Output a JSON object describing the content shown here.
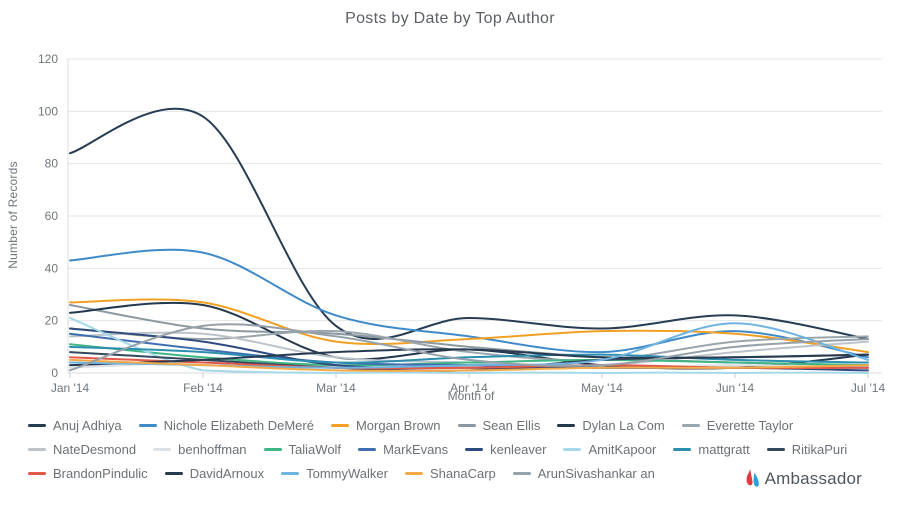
{
  "chart": {
    "title": "Posts by Date by Top Author",
    "y_axis": {
      "label": "Number of Records",
      "ticks": [
        0,
        20,
        40,
        60,
        80,
        100,
        120
      ]
    },
    "x_axis": {
      "label": "Month of",
      "ticks": [
        "Jan '14",
        "Feb '14",
        "Mar '14",
        "Apr '14",
        "May '14",
        "Jun '14",
        "Jul '14"
      ]
    }
  },
  "chart_data": {
    "type": "line",
    "title": "Posts by Date by Top Author",
    "xlabel": "Month of",
    "ylabel": "Number of Records",
    "ylim": [
      0,
      120
    ],
    "grid": true,
    "legend_position": "bottom",
    "x": [
      "Jan '14",
      "Feb '14",
      "Mar '14",
      "Apr '14",
      "May '14",
      "Jun '14",
      "Jul '14"
    ],
    "series": [
      {
        "name": "Anuj Adhiya",
        "color": "#263d54",
        "values": [
          84,
          98,
          18,
          21,
          17,
          22,
          13
        ]
      },
      {
        "name": "Nichole Elizabeth DeMeré",
        "color": "#3f8ac9",
        "values": [
          43,
          46,
          22,
          14,
          8,
          16,
          6
        ]
      },
      {
        "name": "Morgan Brown",
        "color": "#f2a023",
        "values": [
          27,
          27,
          12,
          13,
          16,
          15,
          8
        ]
      },
      {
        "name": "Sean Ellis",
        "color": "#8b98a0",
        "values": [
          26,
          17,
          15,
          10,
          6,
          4,
          3
        ]
      },
      {
        "name": "Dylan La Com",
        "color": "#24384e",
        "values": [
          23,
          26,
          6,
          9,
          3,
          2,
          7
        ]
      },
      {
        "name": "Everette Taylor",
        "color": "#9aa5ac",
        "values": [
          17,
          13,
          16,
          8,
          5,
          12,
          14
        ]
      },
      {
        "name": "NateDesmond",
        "color": "#bcc3c9",
        "values": [
          14,
          15,
          6,
          4,
          3,
          8,
          12
        ]
      },
      {
        "name": "benhoffman",
        "color": "#dde1e4",
        "values": [
          2,
          4,
          3,
          2,
          2,
          3,
          2
        ]
      },
      {
        "name": "TaliaWolf",
        "color": "#3fb683",
        "values": [
          11,
          6,
          3,
          4,
          5,
          4,
          3
        ]
      },
      {
        "name": "MarkEvans",
        "color": "#3f6eb0",
        "values": [
          15,
          9,
          4,
          3,
          2,
          2,
          2
        ]
      },
      {
        "name": "kenleaver",
        "color": "#2e4a7e",
        "values": [
          17,
          12,
          3,
          2,
          2,
          2,
          1
        ]
      },
      {
        "name": "AmitKapoor",
        "color": "#a5d9e9",
        "values": [
          21,
          1,
          0,
          0,
          0,
          0,
          0
        ]
      },
      {
        "name": "mattgratt",
        "color": "#2c8fb0",
        "values": [
          10,
          8,
          4,
          6,
          7,
          5,
          4
        ]
      },
      {
        "name": "RitikaPuri",
        "color": "#35495e",
        "values": [
          8,
          5,
          2,
          1,
          5,
          6,
          7
        ]
      },
      {
        "name": "BrandonPindulic",
        "color": "#e2594a",
        "values": [
          6,
          4,
          2,
          2,
          3,
          2,
          2
        ]
      },
      {
        "name": "DavidArnoux",
        "color": "#283a50",
        "values": [
          3,
          5,
          8,
          9,
          6,
          6,
          7
        ]
      },
      {
        "name": "TommyWalker",
        "color": "#6fb3e0",
        "values": [
          4,
          3,
          2,
          3,
          5,
          19,
          5
        ]
      },
      {
        "name": "ShanaCarp",
        "color": "#f3aa47",
        "values": [
          5,
          3,
          1,
          1,
          2,
          2,
          3
        ]
      },
      {
        "name": "ArunSivashankar an",
        "color": "#97a1a9",
        "values": [
          1,
          18,
          14,
          5,
          3,
          10,
          13
        ]
      }
    ]
  },
  "style": {
    "grid_color": "#e4e6e9",
    "axis_line_color": "#d8dbde",
    "tick_color": "#c6cacd",
    "tick_text_color": "#6f767c"
  },
  "footer": {
    "brand": "Ambassador",
    "logo_red": "#e03a3f",
    "logo_blue": "#2d9fd8"
  }
}
